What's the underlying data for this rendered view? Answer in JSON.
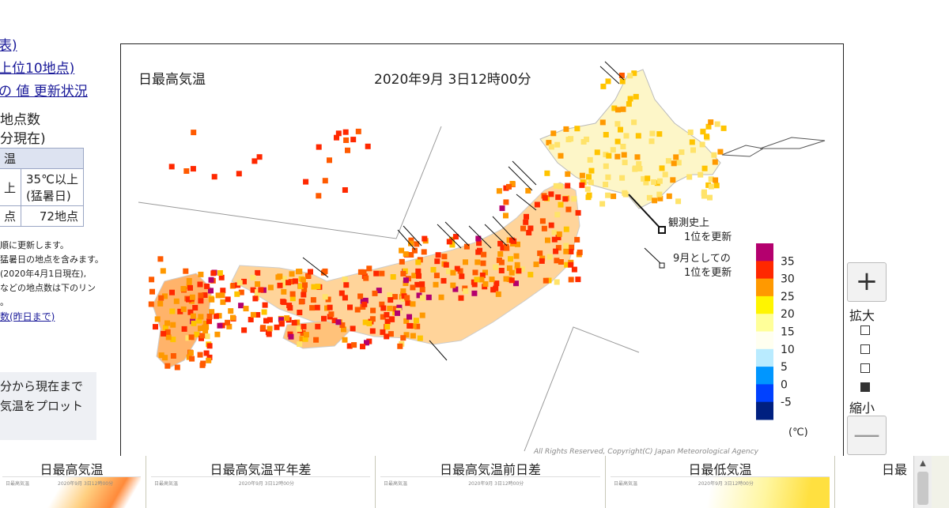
{
  "left_panel": {
    "links": [
      "表)",
      "上位10地点)",
      "の 値  更新状況"
    ],
    "count_heading_line1": "地点数",
    "count_heading_line2": "分現在)",
    "table_header": "温",
    "table_col1_top": "上",
    "table_col2_line1": "35℃以上",
    "table_col2_line2": "(猛暑日)",
    "table_val1": "点",
    "table_val2": "72地点",
    "notes": [
      "順に更新します。",
      "猛暑日の地点を含みます。",
      "(2020年4月1日現在),",
      "などの地点数は下のリン",
      "。"
    ],
    "notes_link": "数(昨日まで)",
    "plot_text_line1": "分から現在まで",
    "plot_text_line2": "気温をプロット"
  },
  "map": {
    "title": "日最高気温",
    "datetime": "2020年9月 3日12時00分",
    "legend_record_all": [
      "観測史上",
      "1位を更新"
    ],
    "legend_record_sep": [
      "9月としての",
      "1位を更新"
    ],
    "unit": "(℃)",
    "copyright": "All Rights Reserved, Copyright(C) Japan Meteorological Agency",
    "color_scale": [
      {
        "label": "35",
        "color": "#b4006e"
      },
      {
        "label": "30",
        "color": "#ff2800"
      },
      {
        "label": "25",
        "color": "#ff9900"
      },
      {
        "label": "20",
        "color": "#fff500"
      },
      {
        "label": "15",
        "color": "#ffff99"
      },
      {
        "label": "10",
        "color": "#fffff0"
      },
      {
        "label": "5",
        "color": "#b9ebff"
      },
      {
        "label": "0",
        "color": "#0096ff"
      },
      {
        "label": "-5",
        "color": "#0041ff"
      },
      {
        "label": "",
        "color": "#002080"
      }
    ]
  },
  "zoom": {
    "plus_label": "+",
    "zoom_in_label": "拡大",
    "zoom_out_label": "縮小",
    "minus_label": "—",
    "levels": 4,
    "active_level": 4
  },
  "tabs": [
    {
      "title": "日最高気温"
    },
    {
      "title": "日最高気温平年差"
    },
    {
      "title": "日最高気温前日差"
    },
    {
      "title": "日最低気温"
    },
    {
      "title": "日最"
    }
  ],
  "thumb_label": "日最高気温",
  "thumb_date": "2020年9月 3日12時00分",
  "scroll_up": "▲"
}
